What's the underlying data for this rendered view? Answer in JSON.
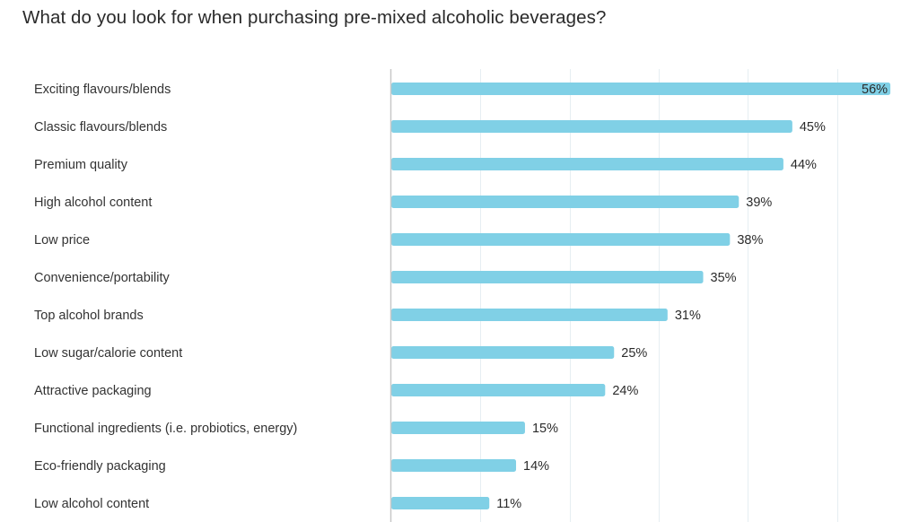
{
  "colors": {
    "bar": "#80d0e6",
    "axis": "#c8c8c8",
    "grid": "#e6eef2",
    "text": "#333333"
  },
  "chart_data": {
    "type": "bar",
    "orientation": "horizontal",
    "title": "What do you look for when purchasing pre-mixed alcoholic beverages?",
    "xlabel": "",
    "ylabel": "",
    "xlim": [
      0,
      60
    ],
    "grid_step": 10,
    "grid": true,
    "categories": [
      "Exciting flavours/blends",
      "Classic flavours/blends",
      "Premium quality",
      "High alcohol content",
      "Low price",
      "Convenience/portability",
      "Top alcohol brands",
      "Low sugar/calorie content",
      "Attractive packaging",
      "Functional ingredients (i.e. probiotics, energy)",
      "Eco-friendly packaging",
      "Low alcohol content"
    ],
    "values": [
      56,
      45,
      44,
      39,
      38,
      35,
      31,
      25,
      24,
      15,
      14,
      11
    ],
    "value_labels": [
      "56%",
      "45%",
      "44%",
      "39%",
      "38%",
      "35%",
      "31%",
      "25%",
      "24%",
      "15%",
      "14%",
      "11%"
    ]
  }
}
